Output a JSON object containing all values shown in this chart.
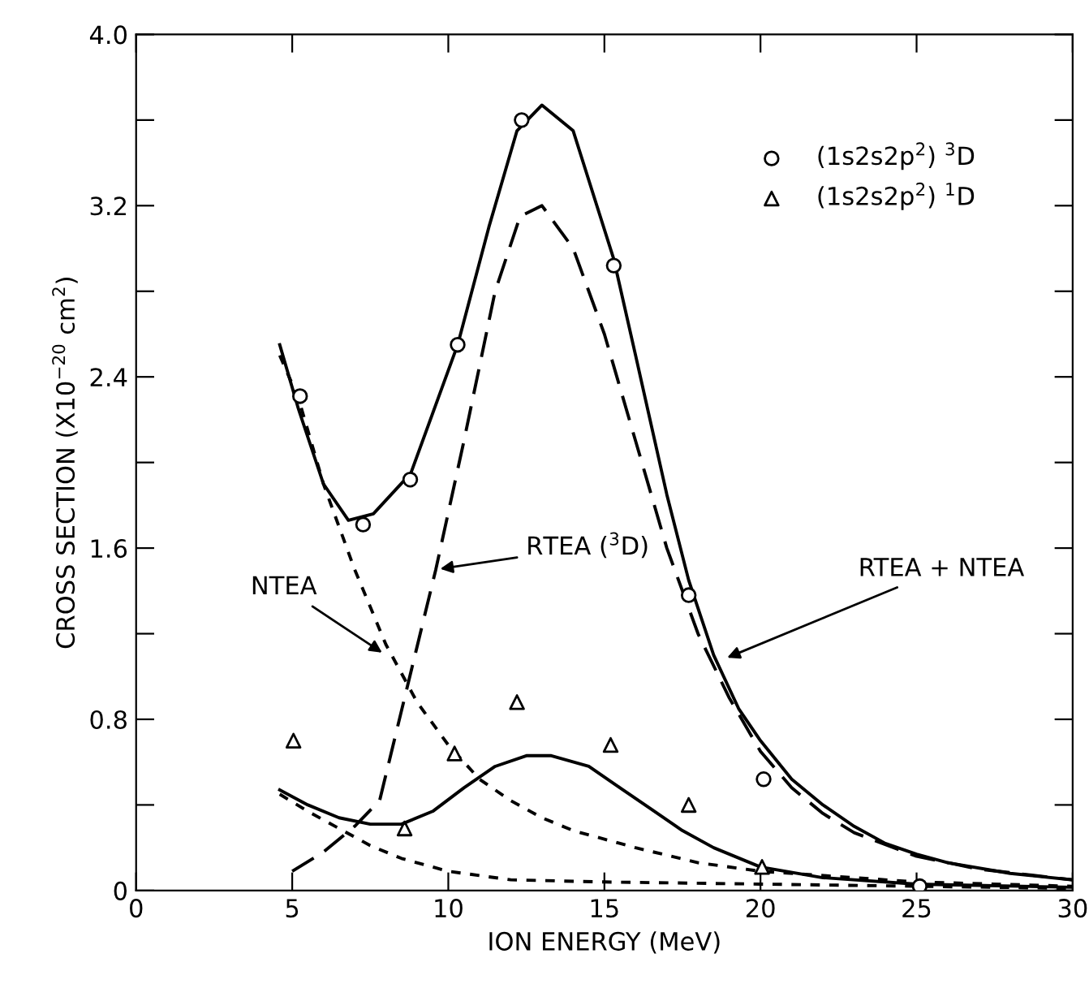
{
  "chart_data": {
    "type": "line",
    "xlabel": "ION ENERGY (MeV)",
    "ylabel": "CROSS SECTION (X10$^{−20}$ cm$^{2}$)",
    "xlim": [
      0,
      30
    ],
    "xticks": [
      0,
      5,
      10,
      15,
      20,
      25,
      30
    ],
    "ylim": [
      0,
      4.0
    ],
    "yticks": [
      {
        "value": 0,
        "label": "0"
      },
      {
        "value": 0.4,
        "label": null
      },
      {
        "value": 0.8,
        "label": "0.8"
      },
      {
        "value": 1.2,
        "label": null
      },
      {
        "value": 1.6,
        "label": "1.6"
      },
      {
        "value": 2.0,
        "label": null
      },
      {
        "value": 2.4,
        "label": "2.4"
      },
      {
        "value": 2.8,
        "label": null
      },
      {
        "value": 3.2,
        "label": "3.2"
      },
      {
        "value": 3.6,
        "label": null
      },
      {
        "value": 4.0,
        "label": "4.0"
      }
    ],
    "grid": false,
    "legend": "top right",
    "series": [
      {
        "name": "(1s2s2p$^{2}$) $^{3}$D",
        "type": "scatter",
        "marker": "circle",
        "color": "#000000",
        "x": [
          5.25,
          7.27,
          8.78,
          10.3,
          12.35,
          15.3,
          17.7,
          20.1,
          25.1
        ],
        "values": [
          2.31,
          1.71,
          1.92,
          2.55,
          3.6,
          2.92,
          1.38,
          0.52,
          0.02
        ]
      },
      {
        "name": "(1s2s2p$^{2}$) $^{1}$D",
        "type": "scatter",
        "marker": "triangle",
        "color": "#000000",
        "x": [
          5.04,
          8.6,
          10.2,
          12.2,
          15.2,
          17.7,
          20.05
        ],
        "values": [
          0.7,
          0.29,
          0.64,
          0.88,
          0.68,
          0.4,
          0.11
        ]
      },
      {
        "line_style": "solid",
        "color": "#000000",
        "x": [
          4.6,
          5.2,
          6.0,
          6.8,
          7.6,
          8.8,
          10.3,
          11.3,
          12.2,
          13.0,
          14.0,
          15.3,
          16.0,
          17.0,
          17.7,
          18.5,
          19.3,
          20,
          21,
          22,
          23,
          24,
          25,
          26,
          28,
          30
        ],
        "values": [
          2.55,
          2.25,
          1.9,
          1.73,
          1.76,
          1.95,
          2.55,
          3.1,
          3.55,
          3.67,
          3.55,
          2.95,
          2.5,
          1.85,
          1.45,
          1.1,
          0.85,
          0.7,
          0.52,
          0.4,
          0.3,
          0.22,
          0.17,
          0.13,
          0.08,
          0.05
        ]
      },
      {
        "line_style": "dashed",
        "color": "#000000",
        "x": [
          5,
          6,
          7,
          7.8,
          8.6,
          9.6,
          10.5,
          11.5,
          12.3,
          13,
          14,
          15,
          16,
          17,
          18,
          19,
          20,
          21,
          22,
          23,
          25,
          27,
          30
        ],
        "values": [
          0.09,
          0.18,
          0.3,
          0.42,
          0.9,
          1.5,
          2.1,
          2.8,
          3.15,
          3.2,
          3.0,
          2.6,
          2.1,
          1.6,
          1.2,
          0.9,
          0.65,
          0.48,
          0.36,
          0.27,
          0.16,
          0.1,
          0.05
        ]
      },
      {
        "line_style": "dotted",
        "color": "#000000",
        "x": [
          4.6,
          5.2,
          6,
          7,
          8,
          9,
          10,
          11,
          12,
          13,
          14,
          15,
          16,
          18,
          20,
          25,
          30
        ],
        "values": [
          2.5,
          2.3,
          1.9,
          1.5,
          1.15,
          0.88,
          0.68,
          0.52,
          0.42,
          0.34,
          0.28,
          0.24,
          0.2,
          0.13,
          0.09,
          0.04,
          0.02
        ]
      },
      {
        "line_style": "solid",
        "color": "#000000",
        "x": [
          4.6,
          5.5,
          6.5,
          7.5,
          8.5,
          9.5,
          10.5,
          11.5,
          12.5,
          13.3,
          14.5,
          15.5,
          16.5,
          17.5,
          18.5,
          20,
          22,
          25,
          30
        ],
        "values": [
          0.47,
          0.4,
          0.34,
          0.31,
          0.31,
          0.37,
          0.48,
          0.58,
          0.63,
          0.63,
          0.58,
          0.48,
          0.38,
          0.28,
          0.2,
          0.11,
          0.06,
          0.03,
          0.015
        ]
      },
      {
        "line_style": "dotted",
        "color": "#000000",
        "x": [
          4.6,
          5.5,
          6.5,
          7.5,
          8.5,
          9.5,
          10,
          12,
          15,
          20,
          25,
          30
        ],
        "values": [
          0.45,
          0.37,
          0.29,
          0.21,
          0.15,
          0.11,
          0.09,
          0.05,
          0.04,
          0.03,
          0.02,
          0.01
        ]
      }
    ],
    "annotations": [
      {
        "text": "NTEA",
        "x": 8.0,
        "y": 1.1
      },
      {
        "text": "RTEA ($^{3}$D)",
        "x": 9.6,
        "y": 1.5
      },
      {
        "text": "RTEA + NTEA",
        "x": 18.8,
        "y": 1.08
      }
    ]
  }
}
